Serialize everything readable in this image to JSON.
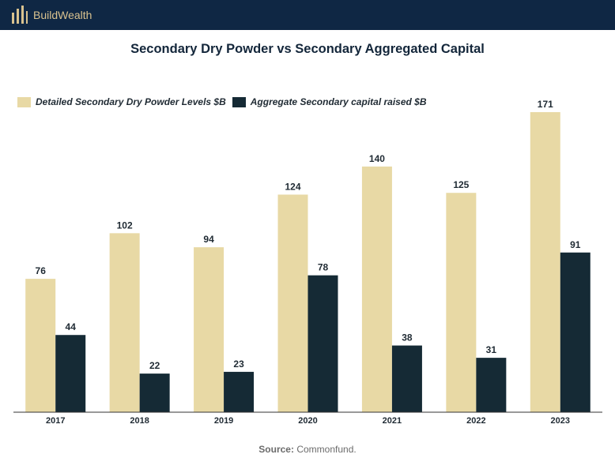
{
  "header": {
    "brand": "BuildWealth",
    "brand_color": "#d9c28f",
    "bar_color": "#0f2744",
    "logo_icon": "bar-columns-icon"
  },
  "chart_data": {
    "type": "bar",
    "title": "Secondary Dry Powder vs Secondary Aggregated Capital",
    "categories": [
      "2017",
      "2018",
      "2019",
      "2020",
      "2021",
      "2022",
      "2023"
    ],
    "series": [
      {
        "name": "Detailed Secondary Dry Powder Levels $B",
        "color": "#e8d9a5",
        "values": [
          76,
          102,
          94,
          124,
          140,
          125,
          171
        ]
      },
      {
        "name": "Aggregate Secondary capital raised $B",
        "color": "#152a35",
        "values": [
          44,
          22,
          23,
          78,
          38,
          31,
          91
        ]
      }
    ],
    "ylim": [
      0,
      171
    ],
    "grid": false,
    "legend_position": "top-left",
    "data_labels": true
  },
  "footer": {
    "source_label": "Source:",
    "source_value": "Commonfund."
  }
}
